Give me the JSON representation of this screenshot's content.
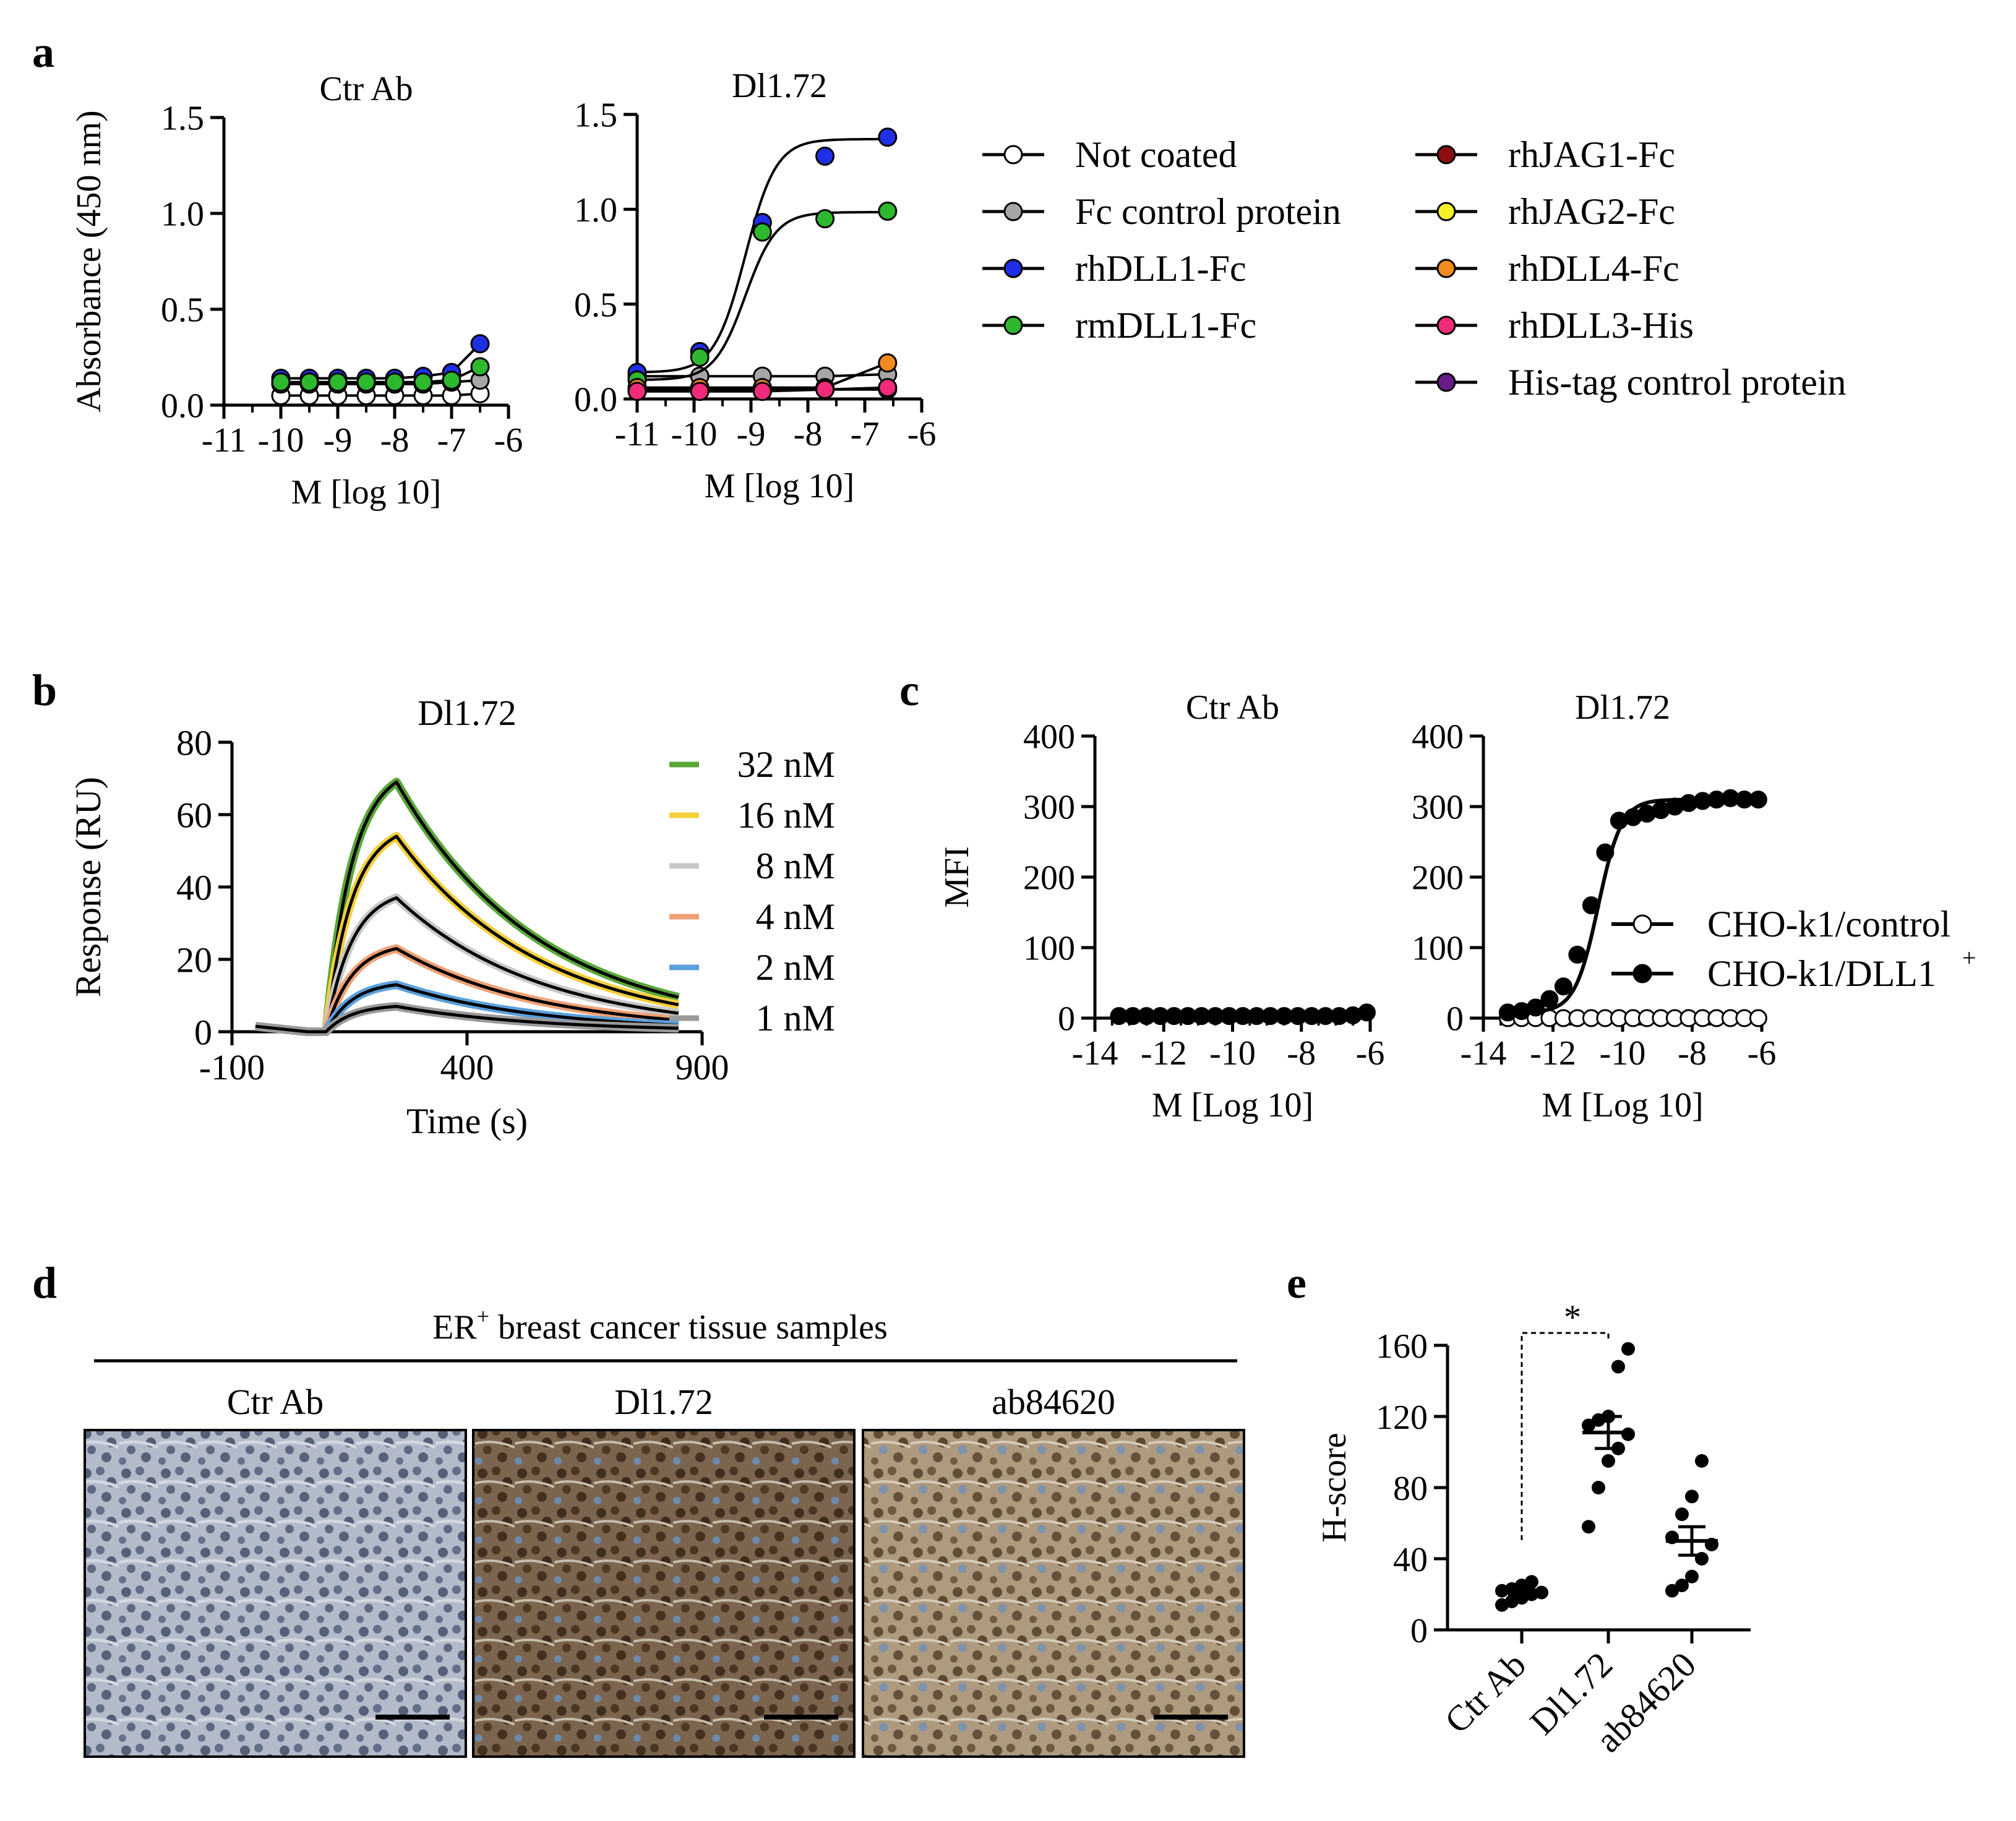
{
  "panels": {
    "a": "a",
    "b": "b",
    "c": "c",
    "d": "d",
    "e": "e"
  },
  "colors": {
    "not_coated": "#ffffff",
    "fc_control": "#a6a6a6",
    "rhDLL1": "#1f2fe6",
    "rmDLL1": "#2db82d",
    "rhJAG1": "#8b0f0f",
    "rhJAG2": "#f2f226",
    "rhDLL4": "#f28a1e",
    "rhDLL3": "#f02b7a",
    "his_tag": "#6a1b8a",
    "nm32": "#5aa63a",
    "nm16": "#f5cf3c",
    "nm8": "#c8c8c8",
    "nm4": "#f0a176",
    "nm2": "#5aa0dc",
    "nm1": "#9a9a9a"
  },
  "legend_a": [
    "Not coated",
    "Fc control protein",
    "rhDLL1-Fc",
    "rmDLL1-Fc",
    "rhJAG1-Fc",
    "rhJAG2-Fc",
    "rhDLL4-Fc",
    "rhDLL3-His",
    "His-tag control protein"
  ],
  "legend_b": [
    "32 nM",
    "16 nM",
    "8 nM",
    "4 nM",
    "2 nM",
    "1 nM"
  ],
  "legend_c": {
    "control": "CHO-k1/control",
    "dll1": "CHO-k1/DLL1",
    "dll1_sup": "+"
  },
  "panel_d": {
    "title_prefix": "ER",
    "title_sup": "+",
    "title_rest": " breast cancer tissue samples",
    "columns": [
      "Ctr Ab",
      "Dl1.72",
      "ab84620"
    ],
    "tile_colors": [
      "#aab3c4",
      "#6e5a45",
      "#9a8a70"
    ]
  },
  "chart_data": [
    {
      "id": "a-ctr",
      "type": "line",
      "title": "Ctr Ab",
      "xlabel": "M [log 10]",
      "ylabel": "Absorbance (450 nm)",
      "xlim": [
        -11,
        -6
      ],
      "ylim": [
        0,
        1.5
      ],
      "xticks": [
        "-11",
        "-10",
        "-9",
        "-8",
        "-7",
        "-6"
      ],
      "yticks": [
        "0.0",
        "0.5",
        "1.0",
        "1.5"
      ],
      "x": [
        -10,
        -9.5,
        -9,
        -8.5,
        -8,
        -7.5,
        -7,
        -6.5
      ],
      "series": [
        {
          "name": "Not coated",
          "values": [
            0.05,
            0.05,
            0.05,
            0.05,
            0.05,
            0.05,
            0.05,
            0.06
          ]
        },
        {
          "name": "Fc control protein",
          "values": [
            0.11,
            0.11,
            0.11,
            0.11,
            0.11,
            0.11,
            0.12,
            0.13
          ]
        },
        {
          "name": "rhDLL1-Fc",
          "values": [
            0.14,
            0.14,
            0.14,
            0.14,
            0.14,
            0.15,
            0.17,
            0.32
          ]
        },
        {
          "name": "rmDLL1-Fc",
          "values": [
            0.12,
            0.12,
            0.12,
            0.12,
            0.12,
            0.12,
            0.13,
            0.2
          ]
        }
      ]
    },
    {
      "id": "a-dl",
      "type": "line",
      "title": "Dl1.72",
      "xlabel": "M [log 10]",
      "ylabel": "",
      "xlim": [
        -11,
        -6
      ],
      "ylim": [
        0,
        1.5
      ],
      "xticks": [
        "-11",
        "-10",
        "-9",
        "-8",
        "-7",
        "-6"
      ],
      "yticks": [
        "0.0",
        "0.5",
        "1.0",
        "1.5"
      ],
      "x": [
        -11,
        -9.9,
        -8.8,
        -7.7,
        -6.6
      ],
      "series": [
        {
          "name": "Not coated",
          "values": [
            0.05,
            0.05,
            0.05,
            0.05,
            0.05
          ]
        },
        {
          "name": "Fc control protein",
          "values": [
            0.12,
            0.12,
            0.12,
            0.12,
            0.13
          ]
        },
        {
          "name": "rhDLL1-Fc",
          "values": [
            0.14,
            0.25,
            0.93,
            1.28,
            1.38
          ]
        },
        {
          "name": "rmDLL1-Fc",
          "values": [
            0.1,
            0.22,
            0.88,
            0.95,
            0.99
          ]
        },
        {
          "name": "rhDLL4-Fc",
          "values": [
            0.06,
            0.06,
            0.06,
            0.06,
            0.19
          ]
        },
        {
          "name": "rhDLL3-His",
          "values": [
            0.04,
            0.04,
            0.04,
            0.05,
            0.06
          ]
        }
      ]
    },
    {
      "id": "b",
      "type": "line",
      "title": "Dl1.72",
      "xlabel": "Time (s)",
      "ylabel": "Response (RU)",
      "xlim": [
        -100,
        900
      ],
      "ylim": [
        0,
        80
      ],
      "xticks": [
        "-100",
        "400",
        "900"
      ],
      "yticks": [
        "0",
        "20",
        "40",
        "60",
        "80"
      ],
      "association_start": 100,
      "dissociation_start": 250,
      "end": 850,
      "series": [
        {
          "name": "32 nM",
          "peak": 69
        },
        {
          "name": "16 nM",
          "peak": 54
        },
        {
          "name": "8 nM",
          "peak": 37
        },
        {
          "name": "4 nM",
          "peak": 23
        },
        {
          "name": "2 nM",
          "peak": 13
        },
        {
          "name": "1 nM",
          "peak": 7
        }
      ]
    },
    {
      "id": "c-ctr",
      "type": "scatter",
      "title": "Ctr Ab",
      "xlabel": "M [Log 10]",
      "ylabel": "MFI",
      "xlim": [
        -14,
        -6
      ],
      "ylim": [
        0,
        400
      ],
      "xticks": [
        "-14",
        "-12",
        "-10",
        "-8",
        "-6"
      ],
      "yticks": [
        "0",
        "100",
        "200",
        "300",
        "400"
      ],
      "x": [
        -13.3,
        -12.9,
        -12.5,
        -12.1,
        -11.7,
        -11.3,
        -10.9,
        -10.5,
        -10.1,
        -9.7,
        -9.3,
        -8.9,
        -8.5,
        -8.1,
        -7.7,
        -7.3,
        -6.9,
        -6.5,
        -6.1
      ],
      "series": [
        {
          "name": "CHO-k1/DLL1+",
          "values": [
            3,
            3,
            3,
            3,
            3,
            3,
            3,
            3,
            3,
            3,
            3,
            3,
            3,
            3,
            3,
            3,
            3,
            4,
            8
          ]
        }
      ]
    },
    {
      "id": "c-dl",
      "type": "scatter",
      "title": "Dl1.72",
      "xlabel": "M [Log 10]",
      "ylabel": "",
      "xlim": [
        -14,
        -6
      ],
      "ylim": [
        0,
        400
      ],
      "xticks": [
        "-14",
        "-12",
        "-10",
        "-8",
        "-6"
      ],
      "yticks": [
        "0",
        "100",
        "200",
        "300",
        "400"
      ],
      "x": [
        -13.3,
        -12.9,
        -12.5,
        -12.1,
        -11.7,
        -11.3,
        -10.9,
        -10.5,
        -10.1,
        -9.7,
        -9.3,
        -8.9,
        -8.5,
        -8.1,
        -7.7,
        -7.3,
        -6.9,
        -6.5,
        -6.1
      ],
      "series": [
        {
          "name": "CHO-k1/control",
          "values": [
            0,
            0,
            0,
            0,
            0,
            0,
            0,
            0,
            0,
            0,
            0,
            0,
            0,
            0,
            0,
            0,
            0,
            0,
            0
          ]
        },
        {
          "name": "CHO-k1/DLL1+",
          "values": [
            8,
            10,
            15,
            27,
            45,
            90,
            160,
            235,
            280,
            285,
            290,
            295,
            300,
            305,
            308,
            310,
            312,
            310,
            310
          ]
        }
      ]
    },
    {
      "id": "e",
      "type": "scatter",
      "title": "",
      "xlabel": "",
      "ylabel": "H-score",
      "ylim": [
        0,
        160
      ],
      "yticks": [
        "0",
        "40",
        "80",
        "120",
        "160"
      ],
      "categories": [
        "Ctr Ab",
        "Dl1.72",
        "ab84620"
      ],
      "groups": [
        {
          "name": "Ctr Ab",
          "values": [
            14,
            16,
            18,
            20,
            21,
            22,
            23,
            25,
            27
          ],
          "mean": 21,
          "sem": 2
        },
        {
          "name": "Dl1.72",
          "values": [
            58,
            80,
            95,
            102,
            110,
            115,
            118,
            120,
            148,
            158
          ],
          "mean": 111,
          "sem": 9
        },
        {
          "name": "ab84620",
          "values": [
            22,
            25,
            30,
            40,
            48,
            52,
            65,
            75,
            95
          ],
          "mean": 50,
          "sem": 8
        }
      ],
      "significance": "*"
    }
  ]
}
